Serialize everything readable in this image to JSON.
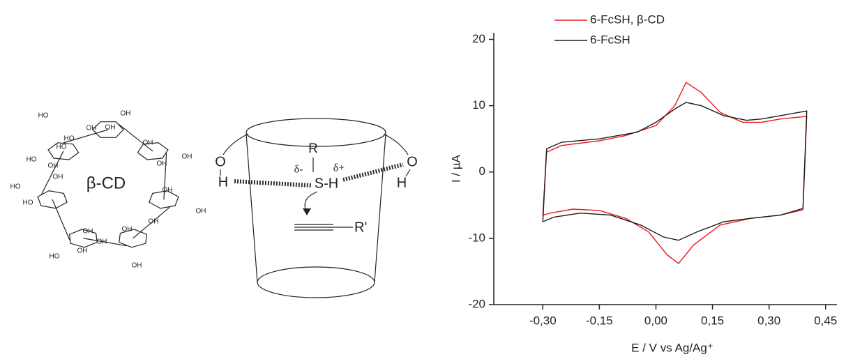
{
  "diagram": {
    "cd_title": "β-CD",
    "cd_labels": [
      "OH",
      "HO",
      "OH",
      "OH",
      "HO",
      "OH",
      "OH",
      "HO",
      "OH",
      "HO",
      "OH",
      "OH",
      "OH",
      "HO",
      "OH",
      "OH",
      "HO",
      "OH",
      "OH",
      "OH",
      "HO",
      "OH",
      "OH"
    ],
    "cup_labels": {
      "r": "R",
      "delta_minus": "δ-",
      "delta_plus": "δ+",
      "sh": "S-H",
      "o_left": "O",
      "h_left": "H",
      "o_right": "O",
      "h_right": "H",
      "r_prime": "R'"
    }
  },
  "chart_data": {
    "type": "line",
    "xlabel": "E / V vs Ag/Ag⁺",
    "ylabel": "I / µA",
    "xlim": [
      -0.43,
      0.48
    ],
    "ylim": [
      -20,
      21
    ],
    "xticks": [
      {
        "value": -0.3,
        "label": "-0,30"
      },
      {
        "value": -0.15,
        "label": "-0,15"
      },
      {
        "value": 0,
        "label": "0,00"
      },
      {
        "value": 0.15,
        "label": "0,15"
      },
      {
        "value": 0.3,
        "label": "0,30"
      },
      {
        "value": 0.45,
        "label": "0,45"
      }
    ],
    "yticks": [
      -20,
      -10,
      0,
      10,
      20
    ],
    "legend": "top-left",
    "series": [
      {
        "name": "6-FcSH, β-CD",
        "color": "#e8191c",
        "x": [
          -0.3,
          -0.29,
          -0.25,
          -0.15,
          -0.08,
          0.0,
          0.05,
          0.08,
          0.12,
          0.17,
          0.23,
          0.28,
          0.33,
          0.4,
          0.4,
          0.39,
          0.33,
          0.25,
          0.17,
          0.1,
          0.06,
          0.03,
          -0.02,
          -0.08,
          -0.15,
          -0.22,
          -0.28,
          -0.3
        ],
        "values": [
          -6.5,
          3,
          4,
          4.7,
          5.5,
          7,
          10,
          13.5,
          12,
          9,
          7.5,
          7.5,
          8,
          8.4,
          8.4,
          -5.7,
          -6.5,
          -7,
          -8,
          -11,
          -13.8,
          -12.5,
          -9,
          -7,
          -5.8,
          -5.6,
          -6.2,
          -6.5
        ]
      },
      {
        "name": "6-FcSH",
        "color": "#1a1a1a",
        "x": [
          -0.3,
          -0.29,
          -0.25,
          -0.15,
          -0.05,
          0.0,
          0.05,
          0.08,
          0.12,
          0.18,
          0.24,
          0.28,
          0.33,
          0.4,
          0.4,
          0.39,
          0.33,
          0.25,
          0.18,
          0.11,
          0.06,
          0.02,
          -0.04,
          -0.12,
          -0.2,
          -0.27,
          -0.3
        ],
        "values": [
          -7.5,
          3.5,
          4.5,
          5,
          6,
          7.5,
          9.5,
          10.5,
          10,
          8.5,
          7.8,
          8,
          8.5,
          9.2,
          9.2,
          -5.5,
          -6.5,
          -7,
          -7.5,
          -9,
          -10.3,
          -9.8,
          -8,
          -6.5,
          -6.2,
          -6.8,
          -7.5
        ]
      }
    ]
  }
}
